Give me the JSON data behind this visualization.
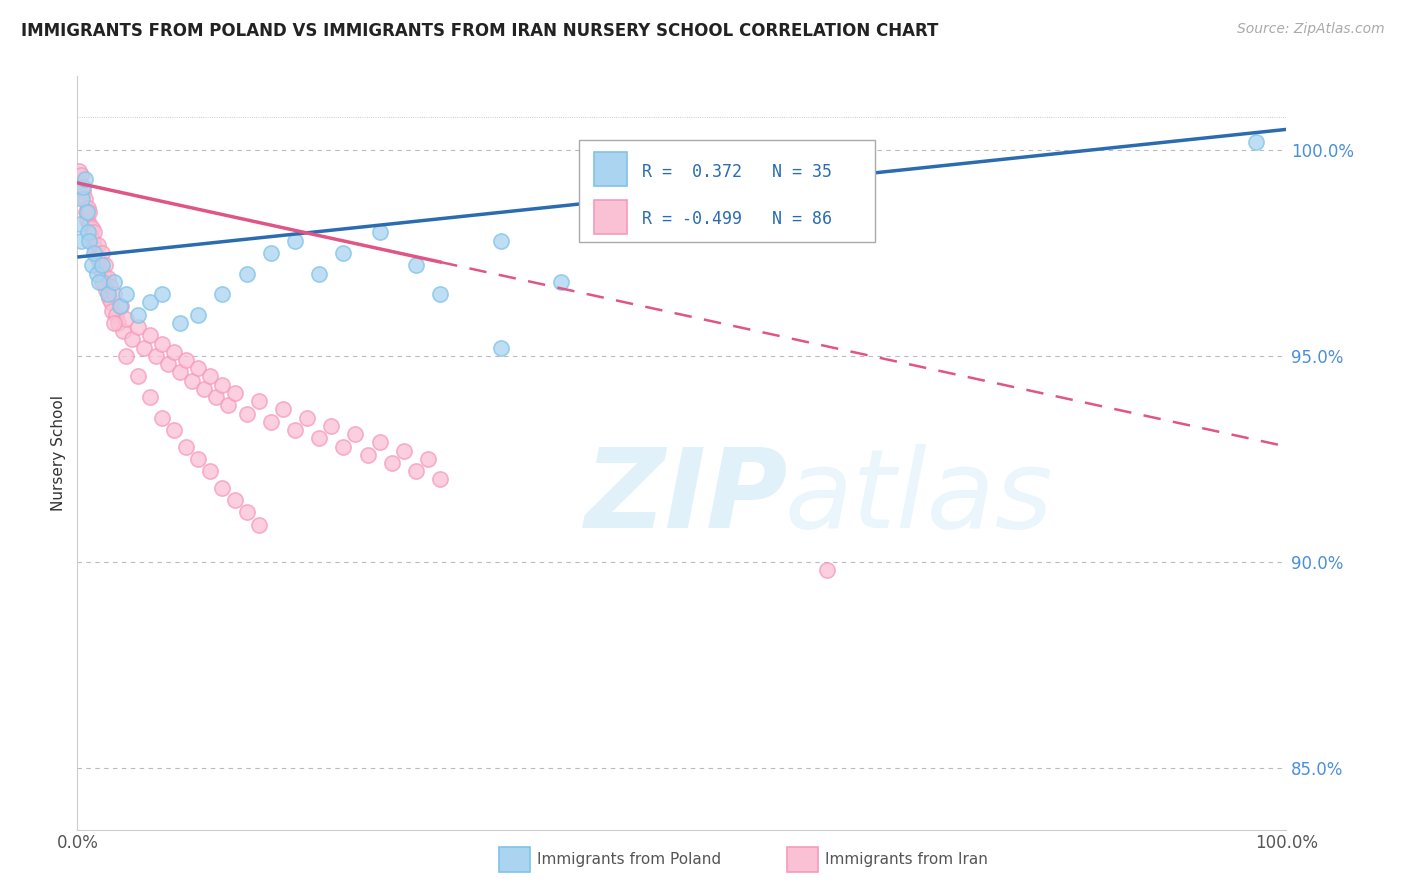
{
  "title": "IMMIGRANTS FROM POLAND VS IMMIGRANTS FROM IRAN NURSERY SCHOOL CORRELATION CHART",
  "source": "Source: ZipAtlas.com",
  "ylabel": "Nursery School",
  "xlim": [
    0.0,
    100.0
  ],
  "ylim": [
    83.5,
    101.8
  ],
  "yticks": [
    85.0,
    90.0,
    95.0,
    100.0
  ],
  "xticks": [
    0.0,
    100.0
  ],
  "xtick_labels": [
    "0.0%",
    "100.0%"
  ],
  "ytick_labels": [
    "85.0%",
    "90.0%",
    "95.0%",
    "100.0%"
  ],
  "poland_R": 0.372,
  "poland_N": 35,
  "iran_R": -0.499,
  "iran_N": 86,
  "poland_color_edge": "#7fc4e8",
  "poland_color_fill": "#aad4f0",
  "iran_color_edge": "#f799bb",
  "iran_color_fill": "#fac0d4",
  "trend_poland_color": "#2b6cb0",
  "trend_iran_color": "#e05585",
  "background_color": "#ffffff",
  "grid_color": "#bbbbbb",
  "title_color": "#222222",
  "legend_label_poland": "Immigrants from Poland",
  "legend_label_iran": "Immigrants from Iran",
  "poland_trend_x0": 0.0,
  "poland_trend_y0": 97.4,
  "poland_trend_x1": 100.0,
  "poland_trend_y1": 100.5,
  "iran_trend_x0": 0.0,
  "iran_trend_y0": 99.2,
  "iran_trend_solid_end_x": 30.0,
  "iran_trend_solid_end_y": 95.3,
  "iran_trend_x1": 100.0,
  "iran_trend_y1": 92.8,
  "poland_x": [
    0.2,
    0.3,
    0.4,
    0.5,
    0.6,
    0.8,
    0.9,
    1.0,
    1.2,
    1.4,
    1.6,
    1.8,
    2.0,
    2.5,
    3.0,
    3.5,
    4.0,
    5.0,
    6.0,
    7.0,
    8.5,
    10.0,
    12.0,
    14.0,
    16.0,
    18.0,
    20.0,
    22.0,
    25.0,
    28.0,
    30.0,
    35.0,
    40.0,
    35.0,
    97.5
  ],
  "poland_y": [
    98.2,
    97.8,
    98.8,
    99.1,
    99.3,
    98.5,
    98.0,
    97.8,
    97.2,
    97.5,
    97.0,
    96.8,
    97.2,
    96.5,
    96.8,
    96.2,
    96.5,
    96.0,
    96.3,
    96.5,
    95.8,
    96.0,
    96.5,
    97.0,
    97.5,
    97.8,
    97.0,
    97.5,
    98.0,
    97.2,
    96.5,
    97.8,
    96.8,
    95.2,
    100.2
  ],
  "iran_x": [
    0.1,
    0.2,
    0.3,
    0.4,
    0.5,
    0.6,
    0.7,
    0.8,
    0.9,
    1.0,
    1.1,
    1.2,
    1.3,
    1.4,
    1.5,
    1.6,
    1.7,
    1.8,
    1.9,
    2.0,
    2.1,
    2.2,
    2.3,
    2.4,
    2.5,
    2.6,
    2.7,
    2.8,
    2.9,
    3.0,
    3.2,
    3.4,
    3.6,
    3.8,
    4.0,
    4.5,
    5.0,
    5.5,
    6.0,
    6.5,
    7.0,
    7.5,
    8.0,
    8.5,
    9.0,
    9.5,
    10.0,
    10.5,
    11.0,
    11.5,
    12.0,
    12.5,
    13.0,
    14.0,
    15.0,
    16.0,
    17.0,
    18.0,
    19.0,
    20.0,
    21.0,
    22.0,
    23.0,
    24.0,
    25.0,
    26.0,
    27.0,
    28.0,
    29.0,
    30.0,
    1.0,
    2.0,
    3.0,
    4.0,
    5.0,
    6.0,
    7.0,
    8.0,
    9.0,
    10.0,
    11.0,
    12.0,
    13.0,
    14.0,
    15.0,
    62.0
  ],
  "iran_y": [
    99.5,
    99.2,
    99.4,
    98.9,
    99.0,
    98.8,
    98.5,
    98.3,
    98.6,
    98.2,
    97.9,
    98.1,
    97.8,
    98.0,
    97.6,
    97.4,
    97.7,
    97.3,
    97.1,
    97.5,
    97.0,
    96.8,
    97.2,
    96.6,
    96.9,
    96.4,
    96.7,
    96.3,
    96.1,
    96.5,
    96.0,
    95.8,
    96.2,
    95.6,
    95.9,
    95.4,
    95.7,
    95.2,
    95.5,
    95.0,
    95.3,
    94.8,
    95.1,
    94.6,
    94.9,
    94.4,
    94.7,
    94.2,
    94.5,
    94.0,
    94.3,
    93.8,
    94.1,
    93.6,
    93.9,
    93.4,
    93.7,
    93.2,
    93.5,
    93.0,
    93.3,
    92.8,
    93.1,
    92.6,
    92.9,
    92.4,
    92.7,
    92.2,
    92.5,
    92.0,
    98.5,
    96.8,
    95.8,
    95.0,
    94.5,
    94.0,
    93.5,
    93.2,
    92.8,
    92.5,
    92.2,
    91.8,
    91.5,
    91.2,
    90.9,
    89.8
  ]
}
